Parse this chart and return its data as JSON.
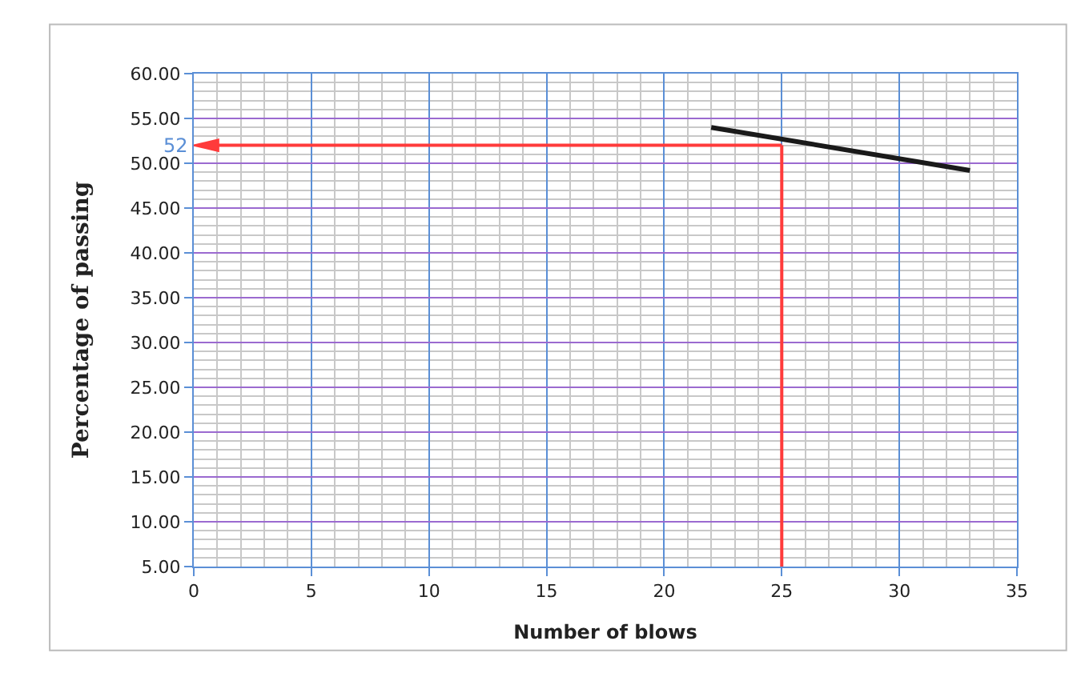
{
  "chart_data": {
    "type": "line",
    "xlabel": "Number of blows",
    "ylabel": "Percentage of passing",
    "series": [
      {
        "color": "#1a1a1a",
        "x": [
          22,
          33
        ],
        "values": [
          54.0,
          49.2
        ]
      }
    ],
    "ref_lines": [
      {
        "axis": "x",
        "value": 25,
        "color": "#ff3b3b"
      },
      {
        "axis": "y",
        "value": 52,
        "label": "52",
        "color": "#ff3b3b"
      }
    ],
    "xlim": [
      0,
      35
    ],
    "xticks": [
      0,
      5,
      10,
      15,
      20,
      25,
      30,
      35
    ],
    "ylim": [
      5,
      60
    ],
    "yticks": [
      {
        "value": 5,
        "label": "5.00"
      },
      {
        "value": 10,
        "label": "10.00"
      },
      {
        "value": 15,
        "label": "15.00"
      },
      {
        "value": 20,
        "label": "20.00"
      },
      {
        "value": 25,
        "label": "25.00"
      },
      {
        "value": 30,
        "label": "30.00"
      },
      {
        "value": 35,
        "label": "35.00"
      },
      {
        "value": 40,
        "label": "40.00"
      },
      {
        "value": 45,
        "label": "45.00"
      },
      {
        "value": 50,
        "label": "50.00"
      },
      {
        "value": 55,
        "label": "55.00"
      },
      {
        "value": 60,
        "label": "60.00"
      }
    ],
    "grid": true,
    "marker": "none"
  }
}
